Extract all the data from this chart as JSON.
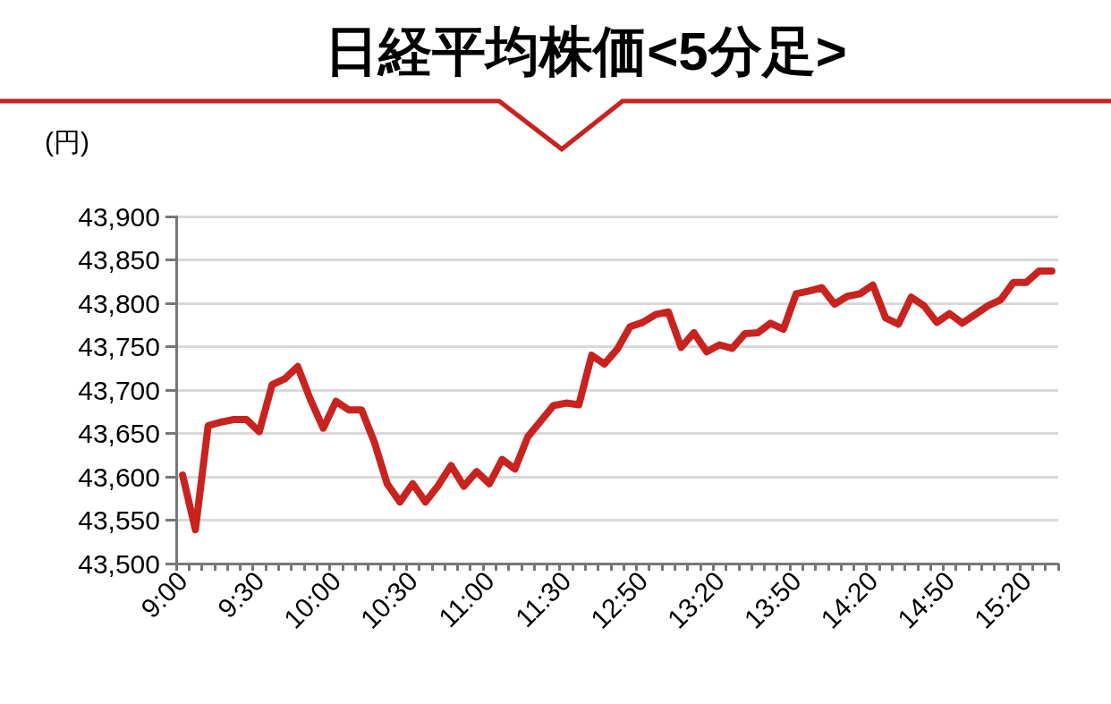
{
  "chart_data": {
    "type": "line",
    "title": "日経平均株価<5分足>",
    "ylabel": "(円)",
    "categories": [
      "9:00",
      null,
      null,
      null,
      null,
      null,
      "9:30",
      null,
      null,
      null,
      null,
      null,
      "10:00",
      null,
      null,
      null,
      null,
      null,
      "10:30",
      null,
      null,
      null,
      null,
      null,
      "11:00",
      null,
      null,
      null,
      null,
      null,
      "11:30",
      null,
      null,
      null,
      null,
      null,
      "12:50",
      null,
      null,
      null,
      null,
      null,
      "13:20",
      null,
      null,
      null,
      null,
      null,
      "13:50",
      null,
      null,
      null,
      null,
      null,
      "14:20",
      null,
      null,
      null,
      null,
      null,
      "14:50",
      null,
      null,
      null,
      null,
      null,
      "15:20",
      null,
      null
    ],
    "series": [
      {
        "color": "#c8231f",
        "values": [
          43602,
          43539,
          43659,
          43663,
          43666,
          43666,
          43652,
          43706,
          43713,
          43727,
          43689,
          43656,
          43687,
          43677,
          43677,
          43640,
          43592,
          43571,
          43592,
          43571,
          43590,
          43613,
          43589,
          43606,
          43592,
          43620,
          43609,
          43646,
          43664,
          43682,
          43685,
          43683,
          43740,
          43730,
          43747,
          43773,
          43778,
          43787,
          43790,
          43749,
          43766,
          43744,
          43752,
          43748,
          43765,
          43766,
          43777,
          43770,
          43811,
          43814,
          43818,
          43799,
          43808,
          43811,
          43821,
          43783,
          43776,
          43807,
          43797,
          43778,
          43788,
          43777,
          43787,
          43797,
          43804,
          43824,
          43824,
          43837,
          43837
        ]
      }
    ],
    "ylim": [
      43500,
      43900
    ],
    "yticks": [
      {
        "value": 43500,
        "label": "43,500"
      },
      {
        "value": 43550,
        "label": "43,550"
      },
      {
        "value": 43600,
        "label": "43,600"
      },
      {
        "value": 43650,
        "label": "43,650"
      },
      {
        "value": 43700,
        "label": "43,700"
      },
      {
        "value": 43750,
        "label": "43,750"
      },
      {
        "value": 43800,
        "label": "43,800"
      },
      {
        "value": 43850,
        "label": "43,850"
      },
      {
        "value": 43900,
        "label": "43,900"
      }
    ],
    "grid": "y",
    "marker": "none",
    "line_style": "solid"
  }
}
